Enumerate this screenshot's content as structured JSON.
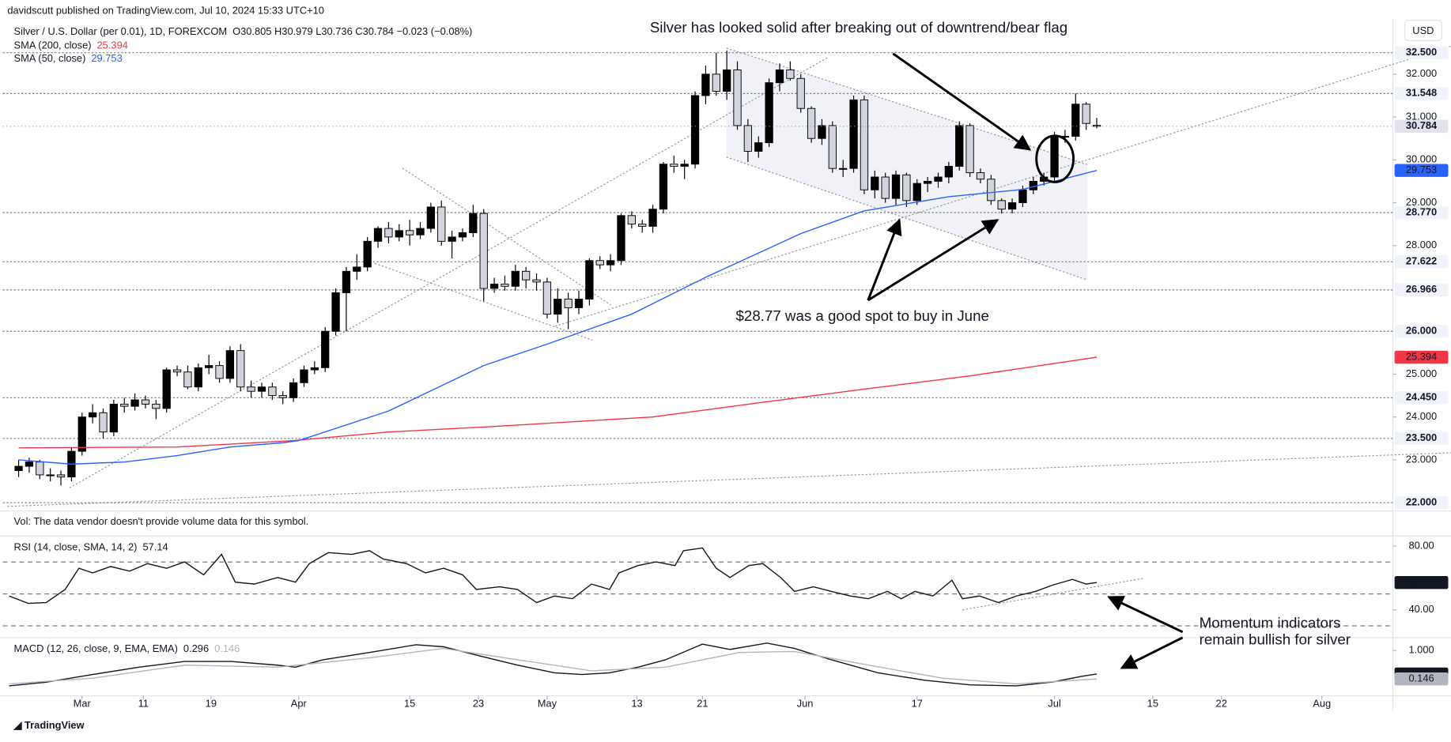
{
  "header": {
    "published": "davidscutt published on TradingView.com, Jul 10, 2024 15:33 UTC+10",
    "currency": "USD",
    "logo": "TradingView"
  },
  "annotations": {
    "breakout": "Silver has looked solid after breaking out of downtrend/bear flag",
    "buy_zone": "$28.77 was a good spot to buy in June",
    "momentum": [
      "Momentum indicators",
      "remain bullish for silver"
    ]
  },
  "chart_data": [
    {
      "type": "candlestick",
      "title": "Silver / U.S. Dollar (per 0.01), 1D, FOREXCOM",
      "ohlc_legend": "O30.805 H30.979 L30.736 C30.784 −0.023 (−0.08%)",
      "volume_note": "Vol: The data vendor doesn't provide volume data for this symbol.",
      "up_color": "#000000",
      "down_color": "#d1d4dc",
      "ohlc": [
        [
          22.75,
          23.0,
          22.6,
          22.85
        ],
        [
          22.85,
          23.05,
          22.7,
          22.95
        ],
        [
          22.95,
          23.0,
          22.55,
          22.65
        ],
        [
          22.65,
          22.8,
          22.5,
          22.65
        ],
        [
          22.65,
          22.75,
          22.4,
          22.6
        ],
        [
          22.6,
          23.3,
          22.5,
          23.2
        ],
        [
          23.2,
          24.1,
          23.1,
          24.0
        ],
        [
          24.0,
          24.3,
          23.85,
          24.1
        ],
        [
          24.1,
          24.2,
          23.5,
          23.65
        ],
        [
          23.65,
          24.4,
          23.55,
          24.3
        ],
        [
          24.3,
          24.45,
          24.1,
          24.25
        ],
        [
          24.25,
          24.55,
          24.15,
          24.4
        ],
        [
          24.4,
          24.5,
          24.2,
          24.3
        ],
        [
          24.3,
          24.4,
          23.95,
          24.2
        ],
        [
          24.2,
          25.15,
          24.1,
          25.1
        ],
        [
          25.1,
          25.2,
          24.95,
          25.05
        ],
        [
          25.05,
          25.2,
          24.65,
          24.7
        ],
        [
          24.7,
          25.25,
          24.6,
          25.15
        ],
        [
          25.15,
          25.45,
          25.0,
          25.2
        ],
        [
          25.2,
          25.3,
          24.8,
          24.9
        ],
        [
          24.9,
          25.65,
          24.8,
          25.55
        ],
        [
          25.55,
          25.7,
          24.6,
          24.7
        ],
        [
          24.7,
          24.85,
          24.45,
          24.6
        ],
        [
          24.6,
          24.8,
          24.45,
          24.7
        ],
        [
          24.7,
          24.8,
          24.4,
          24.5
        ],
        [
          24.5,
          24.6,
          24.3,
          24.45
        ],
        [
          24.45,
          24.9,
          24.35,
          24.8
        ],
        [
          24.8,
          25.2,
          24.7,
          25.1
        ],
        [
          25.1,
          25.3,
          25.0,
          25.15
        ],
        [
          25.15,
          26.1,
          25.05,
          26.0
        ],
        [
          26.0,
          27.0,
          25.9,
          26.9
        ],
        [
          26.9,
          27.5,
          26.0,
          27.4
        ],
        [
          27.4,
          27.8,
          27.2,
          27.5
        ],
        [
          27.5,
          28.2,
          27.4,
          28.1
        ],
        [
          28.1,
          28.45,
          27.95,
          28.4
        ],
        [
          28.4,
          28.55,
          28.05,
          28.2
        ],
        [
          28.2,
          28.5,
          28.1,
          28.35
        ],
        [
          28.35,
          28.6,
          28.0,
          28.25
        ],
        [
          28.25,
          28.55,
          28.15,
          28.4
        ],
        [
          28.4,
          29.0,
          28.3,
          28.9
        ],
        [
          28.9,
          29.05,
          28.0,
          28.1
        ],
        [
          28.1,
          28.35,
          27.7,
          28.2
        ],
        [
          28.2,
          28.4,
          28.1,
          28.3
        ],
        [
          28.3,
          28.95,
          28.2,
          28.75
        ],
        [
          28.75,
          28.85,
          26.7,
          27.0
        ],
        [
          27.0,
          27.25,
          26.9,
          27.1
        ],
        [
          27.1,
          27.3,
          26.95,
          27.05
        ],
        [
          27.05,
          27.55,
          26.95,
          27.4
        ],
        [
          27.4,
          27.5,
          27.0,
          27.2
        ],
        [
          27.2,
          27.35,
          26.95,
          27.15
        ],
        [
          27.15,
          27.25,
          26.3,
          26.4
        ],
        [
          26.4,
          27.0,
          26.2,
          26.75
        ],
        [
          26.75,
          26.9,
          26.05,
          26.55
        ],
        [
          26.55,
          26.95,
          26.4,
          26.75
        ],
        [
          26.75,
          27.7,
          26.6,
          27.65
        ],
        [
          27.65,
          27.75,
          27.45,
          27.55
        ],
        [
          27.55,
          27.8,
          27.4,
          27.65
        ],
        [
          27.65,
          28.75,
          27.55,
          28.7
        ],
        [
          28.7,
          28.8,
          28.4,
          28.5
        ],
        [
          28.5,
          28.6,
          28.3,
          28.45
        ],
        [
          28.45,
          28.95,
          28.3,
          28.85
        ],
        [
          28.85,
          29.95,
          28.75,
          29.9
        ],
        [
          29.9,
          30.1,
          29.7,
          29.85
        ],
        [
          29.85,
          30.0,
          29.55,
          29.9
        ],
        [
          29.9,
          31.6,
          29.8,
          31.5
        ],
        [
          31.5,
          32.2,
          31.3,
          32.0
        ],
        [
          32.0,
          32.5,
          31.5,
          31.6
        ],
        [
          31.6,
          32.55,
          31.4,
          32.1
        ],
        [
          32.1,
          32.3,
          30.7,
          30.8
        ],
        [
          30.8,
          30.95,
          29.95,
          30.2
        ],
        [
          30.2,
          30.55,
          30.05,
          30.4
        ],
        [
          30.4,
          31.9,
          30.3,
          31.8
        ],
        [
          31.8,
          32.25,
          31.6,
          32.1
        ],
        [
          32.1,
          32.3,
          31.85,
          31.9
        ],
        [
          31.9,
          32.0,
          31.1,
          31.2
        ],
        [
          31.2,
          31.25,
          30.4,
          30.5
        ],
        [
          30.5,
          30.95,
          30.35,
          30.8
        ],
        [
          30.8,
          30.9,
          29.7,
          29.8
        ],
        [
          29.8,
          30.0,
          29.6,
          29.8
        ],
        [
          29.8,
          31.5,
          29.7,
          31.4
        ],
        [
          31.4,
          31.5,
          29.2,
          29.3
        ],
        [
          29.3,
          29.75,
          29.1,
          29.6
        ],
        [
          29.6,
          29.7,
          29.0,
          29.1
        ],
        [
          29.1,
          29.75,
          28.95,
          29.65
        ],
        [
          29.65,
          29.7,
          28.9,
          29.05
        ],
        [
          29.05,
          29.55,
          28.95,
          29.45
        ],
        [
          29.45,
          29.6,
          29.25,
          29.5
        ],
        [
          29.5,
          29.7,
          29.35,
          29.6
        ],
        [
          29.6,
          29.95,
          29.45,
          29.85
        ],
        [
          29.85,
          30.9,
          29.75,
          30.8
        ],
        [
          30.8,
          30.85,
          29.6,
          29.7
        ],
        [
          29.7,
          29.8,
          29.45,
          29.55
        ],
        [
          29.55,
          29.65,
          28.95,
          29.05
        ],
        [
          29.05,
          29.1,
          28.75,
          28.85
        ],
        [
          28.85,
          29.1,
          28.75,
          29.0
        ],
        [
          29.0,
          29.4,
          28.9,
          29.3
        ],
        [
          29.3,
          29.6,
          29.2,
          29.5
        ],
        [
          29.5,
          29.7,
          29.4,
          29.6
        ],
        [
          29.6,
          30.65,
          29.5,
          30.55
        ],
        [
          30.55,
          30.7,
          30.4,
          30.55
        ],
        [
          30.55,
          31.55,
          30.45,
          31.3
        ],
        [
          31.3,
          31.35,
          30.7,
          30.85
        ],
        [
          30.805,
          30.979,
          30.736,
          30.784
        ]
      ],
      "xlim": [
        -1.5,
        130
      ],
      "xticks": [
        {
          "value": 6,
          "label": "Mar"
        },
        {
          "value": 11.8,
          "label": "11"
        },
        {
          "value": 18.2,
          "label": "19"
        },
        {
          "value": 26.5,
          "label": "Apr"
        },
        {
          "value": 37,
          "label": "15"
        },
        {
          "value": 43.5,
          "label": "23"
        },
        {
          "value": 50,
          "label": "May"
        },
        {
          "value": 58.5,
          "label": "13"
        },
        {
          "value": 64.7,
          "label": "21"
        },
        {
          "value": 74.4,
          "label": "Jun"
        },
        {
          "value": 85,
          "label": "17"
        },
        {
          "value": 98,
          "label": "Jul"
        },
        {
          "value": 107.3,
          "label": "15"
        },
        {
          "value": 113.8,
          "label": "22"
        },
        {
          "value": 123.3,
          "label": "Aug"
        }
      ],
      "ylim": [
        21.85,
        32.76
      ],
      "yticks": [
        {
          "value": 23,
          "label": "23.000"
        },
        {
          "value": 24,
          "label": "24.000"
        },
        {
          "value": 25,
          "label": "25.000"
        },
        {
          "value": 28,
          "label": "28.000"
        },
        {
          "value": 29,
          "label": "29.000"
        },
        {
          "value": 30,
          "label": "30.000"
        },
        {
          "value": 31,
          "label": "31.000"
        },
        {
          "value": 32,
          "label": "32.000"
        }
      ],
      "levels": [
        {
          "value": 32.5,
          "label": "32.500"
        },
        31.548,
        {
          "value": 28.77,
          "label": "28.770"
        },
        27.622,
        26.966,
        {
          "value": 26,
          "label": "26.000"
        },
        {
          "value": 24.45,
          "label": "24.450"
        },
        {
          "value": 23.5,
          "label": "23.500"
        },
        {
          "value": 22,
          "label": "22.000"
        }
      ],
      "series": [
        {
          "name": "SMA (200, close)",
          "color": "#f23645",
          "x": [
            0,
            15,
            26,
            35,
            45,
            60,
            70,
            80,
            90,
            102
          ],
          "values": [
            23.28,
            23.3,
            23.45,
            23.65,
            23.78,
            24.0,
            24.33,
            24.65,
            24.96,
            25.394
          ]
        },
        {
          "name": "SMA (50, close)",
          "color": "#2962ff",
          "x": [
            0,
            5,
            10,
            15,
            20,
            25,
            26.5,
            35,
            44,
            50,
            58,
            65,
            74,
            80,
            88,
            95,
            102
          ],
          "values": [
            23.0,
            22.9,
            22.95,
            23.1,
            23.3,
            23.4,
            23.45,
            24.14,
            25.2,
            25.7,
            26.4,
            27.26,
            28.28,
            28.81,
            29.14,
            29.31,
            29.753
          ]
        }
      ]
    },
    {
      "type": "line",
      "title": "RSI (14, close, SMA, 14, 2)",
      "ylim": [
        23.8,
        85.2
      ],
      "yticks": [
        {
          "value": 80,
          "label": "80.00"
        },
        {
          "value": 40,
          "label": "40.00"
        }
      ],
      "bands": [
        70,
        50,
        30
      ],
      "series": [
        {
          "color": "#131722",
          "x": [
            -0.9,
            0.9,
            2.6,
            4.4,
            5.7,
            7.0,
            8.7,
            10.5,
            12.2,
            14.0,
            15.7,
            17.5,
            19.2,
            20.5,
            22.3,
            24.5,
            26.2,
            27.5,
            29.3,
            31.5,
            33.2,
            34.5,
            36.7,
            38.5,
            40.2,
            42.0,
            43.3,
            45.5,
            47.2,
            49.0,
            50.7,
            52.4,
            54.2,
            55.9,
            56.8,
            58.6,
            60.3,
            62.1,
            62.9,
            64.7,
            66.0,
            67.3,
            69.1,
            70.4,
            72.1,
            73.4,
            75.2,
            76.9,
            78.7,
            80.4,
            82.2,
            83.5,
            84.8,
            86.5,
            88.3,
            89.3,
            90.9,
            92.7,
            94.4,
            96.2,
            97.9,
            99.7,
            101.0,
            102
          ],
          "values": [
            48.7,
            44.1,
            44.6,
            52.8,
            66.1,
            63.2,
            67.2,
            64.3,
            69.0,
            66.1,
            70.1,
            62.0,
            74.8,
            57.4,
            56.2,
            60.3,
            57.4,
            69.0,
            75.9,
            74.8,
            77.1,
            71.9,
            69.0,
            63.2,
            66.1,
            62.0,
            52.8,
            54.5,
            52.8,
            44.6,
            48.7,
            47.0,
            56.2,
            52.8,
            63.2,
            67.8,
            70.1,
            67.8,
            77.1,
            78.8,
            66.1,
            60.3,
            67.8,
            69.0,
            60.3,
            51.6,
            54.5,
            51.6,
            48.7,
            47.0,
            51.6,
            47.0,
            51.6,
            48.7,
            58.6,
            47.0,
            48.7,
            44.6,
            48.7,
            51.6,
            55.7,
            59.1,
            56.2,
            57.14
          ]
        }
      ]
    },
    {
      "type": "line",
      "title": "MACD (12, 26, close, 9, EMA, EMA)",
      "ylim": [
        -0.33,
        1.33
      ],
      "yticks": [
        {
          "value": 1,
          "label": "1.000"
        }
      ],
      "series": [
        {
          "color": "#131722",
          "x": [
            -0.9,
            2.6,
            7.0,
            11.4,
            15.7,
            20.1,
            24.5,
            26.2,
            28.8,
            33.2,
            37.6,
            40.2,
            43.7,
            47.2,
            50.7,
            53.3,
            55.9,
            58.6,
            61.2,
            64.7,
            67.3,
            70.8,
            73.4,
            76.9,
            81.3,
            85.7,
            90.0,
            94.4,
            97.9,
            100.5,
            102
          ],
          "values": [
            -0.06,
            0.05,
            0.28,
            0.5,
            0.67,
            0.67,
            0.56,
            0.5,
            0.72,
            0.94,
            1.17,
            1.11,
            0.83,
            0.56,
            0.33,
            0.28,
            0.33,
            0.5,
            0.72,
            1.19,
            1.03,
            1.22,
            1.06,
            0.72,
            0.33,
            0.11,
            -0.03,
            -0.06,
            0.06,
            0.22,
            0.296
          ]
        },
        {
          "color": "#b2b5be",
          "x": [
            -0.9,
            7.0,
            15.7,
            24.5,
            33.2,
            40.2,
            47.2,
            54.2,
            61.2,
            68.2,
            73.4,
            80.4,
            87.4,
            94.4,
            102
          ],
          "values": [
            0.0,
            0.17,
            0.56,
            0.5,
            0.78,
            1.06,
            0.72,
            0.39,
            0.5,
            0.94,
            0.97,
            0.56,
            0.17,
            0.0,
            0.146
          ]
        }
      ]
    }
  ]
}
